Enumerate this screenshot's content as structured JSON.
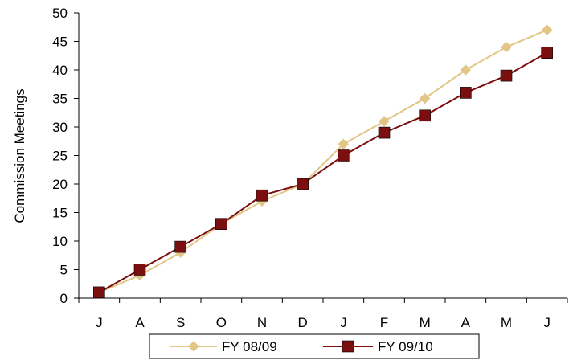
{
  "chart_data": {
    "type": "line",
    "title": "",
    "xlabel": "",
    "ylabel": "Commission Meetings",
    "categories": [
      "J",
      "A",
      "S",
      "O",
      "N",
      "D",
      "J",
      "F",
      "M",
      "A",
      "M",
      "J"
    ],
    "ylim": [
      0,
      50
    ],
    "yticks": [
      0,
      5,
      10,
      15,
      20,
      25,
      30,
      35,
      40,
      45,
      50
    ],
    "grid": false,
    "legend_position": "bottom",
    "series": [
      {
        "name": "FY 08/09",
        "values": [
          1,
          4,
          8,
          13,
          17,
          20,
          27,
          31,
          35,
          40,
          44,
          47
        ],
        "color": "#E1C686",
        "marker": "diamond"
      },
      {
        "name": "FY 09/10",
        "values": [
          1,
          5,
          9,
          13,
          18,
          20,
          25,
          29,
          32,
          36,
          39,
          43
        ],
        "color": "#7B0F0F",
        "marker": "square"
      }
    ]
  }
}
